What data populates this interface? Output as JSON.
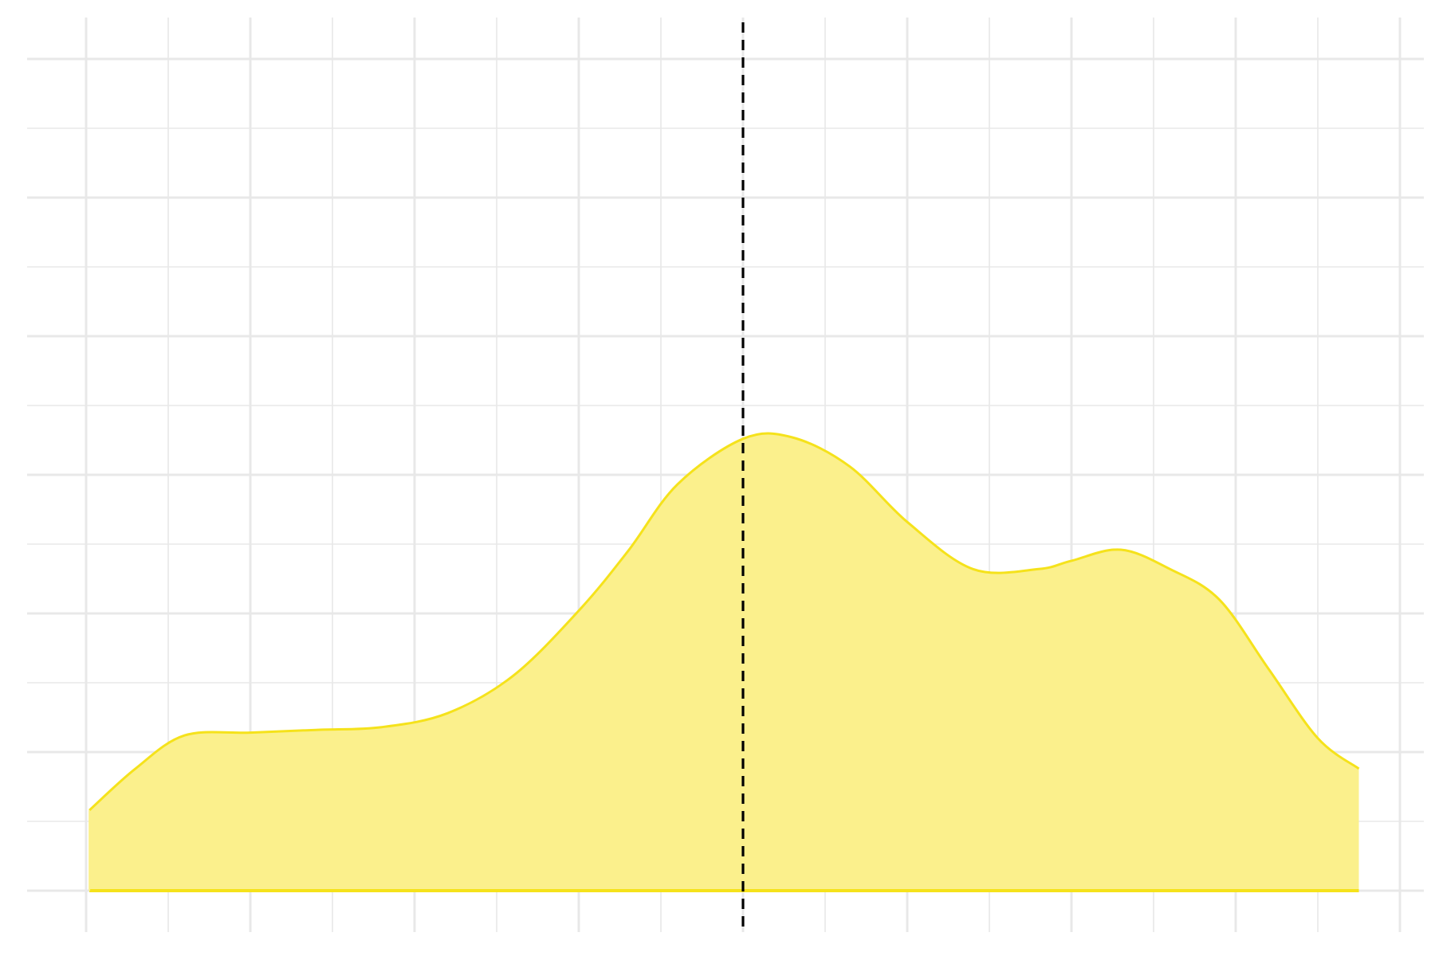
{
  "chart_data": {
    "type": "area",
    "title": "",
    "xlabel": "",
    "ylabel": "",
    "xlim": [
      0,
      8
    ],
    "ylim": [
      0,
      6
    ],
    "grid": true,
    "legend": "none",
    "series": [
      {
        "x": [
          0.02,
          0.3,
          0.6,
          1.0,
          1.4,
          1.8,
          2.2,
          2.6,
          3.0,
          3.3,
          3.6,
          4.0,
          4.3,
          4.65,
          5.0,
          5.4,
          5.8,
          6.0,
          6.3,
          6.6,
          6.9,
          7.2,
          7.5,
          7.75
        ],
        "y": [
          0.58,
          0.88,
          1.12,
          1.14,
          1.16,
          1.18,
          1.28,
          1.55,
          2.02,
          2.45,
          2.93,
          3.26,
          3.27,
          3.06,
          2.66,
          2.32,
          2.32,
          2.38,
          2.46,
          2.32,
          2.1,
          1.6,
          1.1,
          0.88
        ]
      }
    ],
    "vline": {
      "x": 4.0,
      "style": "dashed"
    },
    "colors": {
      "line": "#f5e21b",
      "fill": "#fbf08c",
      "grid": "#e8e8e8",
      "vline": "#000000"
    }
  }
}
